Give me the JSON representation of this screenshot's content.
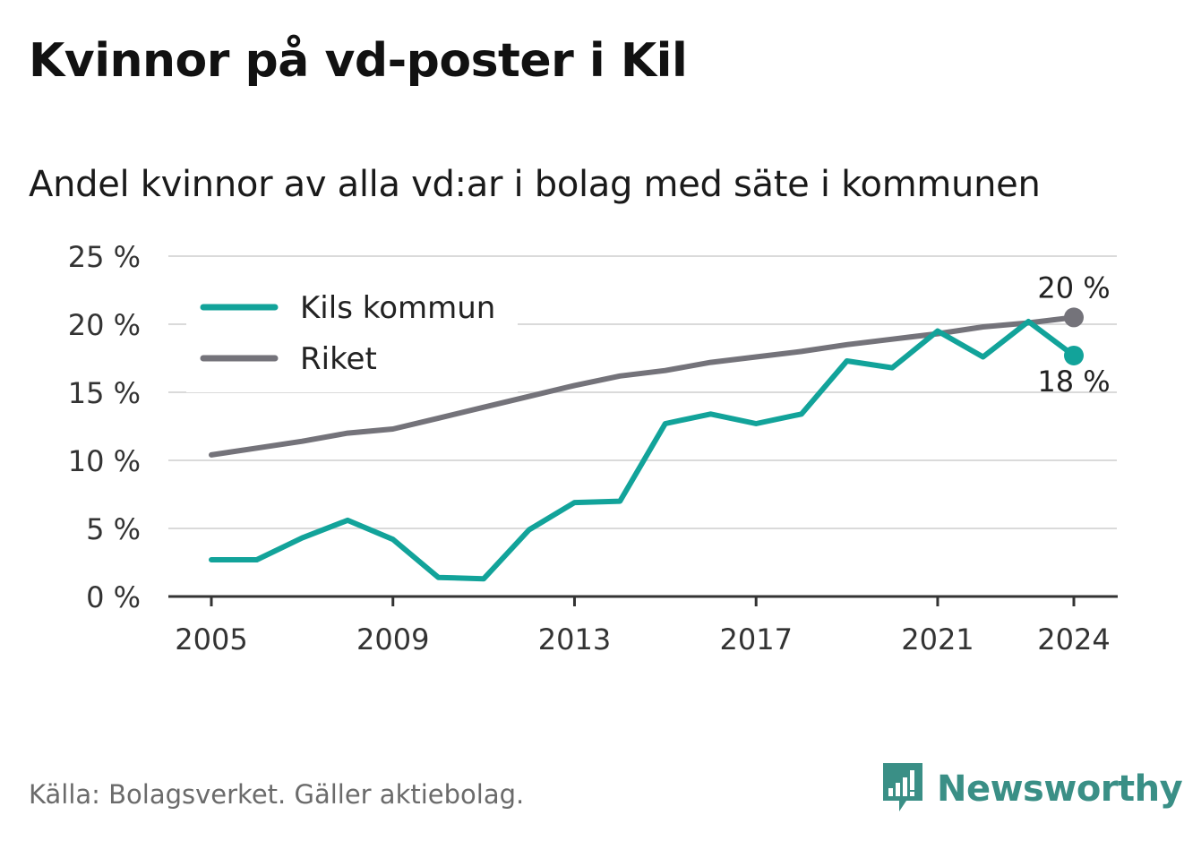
{
  "title": "Kvinnor på vd-poster i Kil",
  "subtitle": "Andel kvinnor av alla vd:ar i bolag med säte i kommunen",
  "source": "Källa: Bolagsverket. Gäller aktiebolag.",
  "brand": {
    "name": "Newsworthy",
    "icon": "newsworthy-logo-icon",
    "color": "#3a8f86"
  },
  "chart_data": {
    "type": "line",
    "x": [
      2005,
      2006,
      2007,
      2008,
      2009,
      2010,
      2011,
      2012,
      2013,
      2014,
      2015,
      2016,
      2017,
      2018,
      2019,
      2020,
      2021,
      2022,
      2023,
      2024
    ],
    "x_ticks": [
      2005,
      2009,
      2013,
      2017,
      2021,
      2024
    ],
    "y_ticks": [
      0,
      5,
      10,
      15,
      20,
      25
    ],
    "y_tick_labels": [
      "0 %",
      "5 %",
      "10 %",
      "15 %",
      "20 %",
      "25 %"
    ],
    "ylim": [
      0,
      25
    ],
    "xlim": [
      2005,
      2024
    ],
    "grid": true,
    "legend_position": "top-left",
    "series": [
      {
        "name": "Kils kommun",
        "color": "#12a39a",
        "values": [
          2.7,
          2.7,
          4.3,
          5.6,
          4.2,
          1.4,
          1.3,
          4.9,
          6.9,
          7.0,
          12.7,
          13.4,
          12.7,
          13.4,
          17.3,
          16.8,
          19.5,
          17.6,
          20.2,
          17.7
        ],
        "end_label": "18 %"
      },
      {
        "name": "Riket",
        "color": "#74737a",
        "values": [
          10.4,
          10.9,
          11.4,
          12.0,
          12.3,
          13.1,
          13.9,
          14.7,
          15.5,
          16.2,
          16.6,
          17.2,
          17.6,
          18.0,
          18.5,
          18.9,
          19.3,
          19.8,
          20.1,
          20.5
        ],
        "end_label": "20 %"
      }
    ]
  }
}
